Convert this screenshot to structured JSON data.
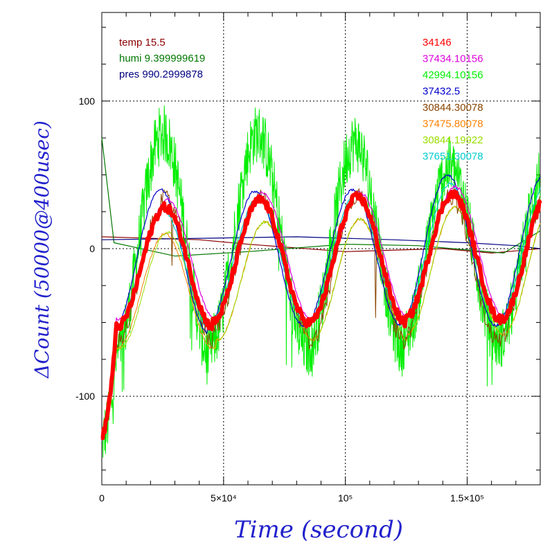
{
  "chart_data": {
    "type": "line",
    "xlabel": "Time (second)",
    "ylabel": "ΔCount (50000@400usec)",
    "xlim": [
      0,
      180000
    ],
    "ylim": [
      -160,
      160
    ],
    "grid": true,
    "x_ticks": [
      {
        "value": 0,
        "label": "0"
      },
      {
        "value": 50000,
        "label": "5×10⁴"
      },
      {
        "value": 100000,
        "label": "10⁵"
      },
      {
        "value": 150000,
        "label": "1.5×10⁵"
      }
    ],
    "y_ticks": [
      {
        "value": 100,
        "label": "100"
      },
      {
        "value": 0,
        "label": "0"
      },
      {
        "value": -100,
        "label": "-100"
      }
    ],
    "env_legend": [
      {
        "text": "temp 15.5",
        "color": "#8b0000"
      },
      {
        "text": "humi 9.399999619",
        "color": "#007700"
      },
      {
        "text": "pres 990.2999878",
        "color": "#000080"
      }
    ],
    "series": [
      {
        "name": "34146",
        "color": "#ff0000",
        "peak_times": [
          26000,
          65000,
          105000,
          144000
        ],
        "peaks": [
          28,
          33,
          35,
          37
        ],
        "troughs": [
          -53,
          -50,
          -50,
          -48
        ],
        "noise": 3,
        "width": 6
      },
      {
        "name": "37434.10156",
        "color": "#dd00dd",
        "peak_times": [
          27000,
          66000,
          106000,
          145000
        ],
        "peaks": [
          33,
          38,
          38,
          42
        ],
        "troughs": [
          -48,
          -47,
          -47,
          -45
        ],
        "noise": 1,
        "width": 1.2
      },
      {
        "name": "42994.10156",
        "color": "#00ee00",
        "peak_times": [
          25000,
          64000,
          104000,
          143000
        ],
        "peaks": [
          78,
          78,
          72,
          55
        ],
        "troughs": [
          -72,
          -66,
          -67,
          -62
        ],
        "noise": 20,
        "width": 1
      },
      {
        "name": "37432.5",
        "color": "#0000cc",
        "peak_times": [
          24000,
          63000,
          103000,
          142000
        ],
        "peaks": [
          40,
          39,
          40,
          50
        ],
        "troughs": [
          -57,
          -52,
          -52,
          -52
        ],
        "noise": 1,
        "width": 1.2
      },
      {
        "name": "30844.30078",
        "color": "#884400",
        "peak_times": [
          26000,
          65000,
          105000,
          143000
        ],
        "peaks": [
          34,
          34,
          36,
          35
        ],
        "troughs": [
          -62,
          -55,
          -64,
          -62
        ],
        "noise": 6,
        "width": 1
      },
      {
        "name": "37475.80078",
        "color": "#ff8000",
        "peak_times": [
          26000,
          67000,
          106000,
          145000
        ],
        "peaks": [
          10,
          18,
          20,
          28
        ],
        "troughs": [
          -68,
          -62,
          -62,
          -58
        ],
        "noise": 1,
        "width": 1
      },
      {
        "name": "30844.19922",
        "color": "#99dd00",
        "peak_times": [
          27000,
          67000,
          106000,
          145000
        ],
        "peaks": [
          11,
          18,
          20,
          28
        ],
        "troughs": [
          -68,
          -62,
          -62,
          -58
        ],
        "noise": 1,
        "width": 1
      },
      {
        "name": "37651.30078",
        "color": "#00cccc",
        "peak_times": [
          25000,
          64000,
          104000,
          143000
        ],
        "peaks": [
          26,
          34,
          36,
          44
        ],
        "troughs": [
          -55,
          -50,
          -50,
          -48
        ],
        "noise": 1,
        "width": 1.2
      }
    ],
    "env_series": [
      {
        "name": "temp",
        "color": "#8b0000",
        "values": [
          [
            0,
            8
          ],
          [
            40000,
            6
          ],
          [
            60000,
            3
          ],
          [
            100000,
            -2
          ],
          [
            140000,
            0
          ],
          [
            160000,
            -3
          ],
          [
            180000,
            0
          ]
        ]
      },
      {
        "name": "humi",
        "color": "#007700",
        "values": [
          [
            0,
            75
          ],
          [
            5000,
            4
          ],
          [
            30000,
            -5
          ],
          [
            60000,
            -2
          ],
          [
            100000,
            3
          ],
          [
            130000,
            2
          ],
          [
            165000,
            -3
          ],
          [
            180000,
            12
          ]
        ]
      },
      {
        "name": "pres",
        "color": "#000080",
        "values": [
          [
            0,
            6
          ],
          [
            40000,
            7
          ],
          [
            80000,
            8
          ],
          [
            120000,
            6
          ],
          [
            150000,
            4
          ],
          [
            170000,
            2
          ],
          [
            180000,
            0
          ]
        ]
      }
    ]
  }
}
